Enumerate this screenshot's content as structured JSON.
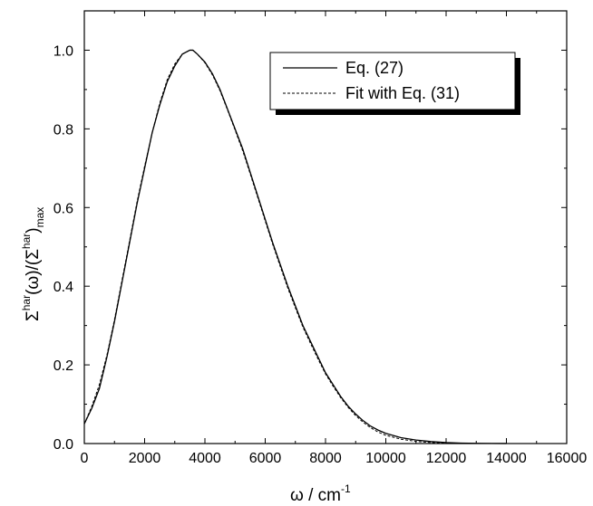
{
  "chart_data": {
    "type": "line",
    "title": "",
    "xlabel": {
      "base": "ω / cm",
      "sup": "-1"
    },
    "ylabel": {
      "p1": "Σ",
      "s1": "har",
      "p2": "(ω)/(Σ",
      "s2": "har",
      "p3": ")",
      "sub": "max"
    },
    "xlim": [
      0,
      16000
    ],
    "ylim": [
      0,
      1.1
    ],
    "x_ticks": [
      0,
      2000,
      4000,
      6000,
      8000,
      10000,
      12000,
      14000,
      16000
    ],
    "x_tick_labels": [
      "0",
      "2000",
      "4000",
      "6000",
      "8000",
      "10000",
      "12000",
      "14000",
      "16000"
    ],
    "y_ticks": [
      0,
      0.2,
      0.4,
      0.6,
      0.8,
      1.0
    ],
    "y_tick_labels": [
      "0.0",
      "0.2",
      "0.4",
      "0.6",
      "0.8",
      "1.0"
    ],
    "grid": false,
    "legend_position": "top-right",
    "series": [
      {
        "name": "Eq. (27)",
        "style": "solid",
        "color": "#000000",
        "x": [
          0,
          250,
          500,
          750,
          1000,
          1250,
          1500,
          1750,
          2000,
          2250,
          2500,
          2750,
          3000,
          3250,
          3500,
          3600,
          3750,
          4000,
          4250,
          4500,
          4750,
          5000,
          5250,
          5500,
          5750,
          6000,
          6250,
          6500,
          6750,
          7000,
          7250,
          7500,
          7750,
          8000,
          8250,
          8500,
          8750,
          9000,
          9250,
          9500,
          9750,
          10000,
          10500,
          11000,
          11500,
          12000,
          12500,
          13000,
          13500,
          14000
        ],
        "y": [
          0.05,
          0.09,
          0.14,
          0.22,
          0.31,
          0.41,
          0.51,
          0.61,
          0.7,
          0.79,
          0.86,
          0.92,
          0.96,
          0.99,
          1.0,
          1.0,
          0.99,
          0.97,
          0.94,
          0.9,
          0.85,
          0.8,
          0.75,
          0.69,
          0.63,
          0.57,
          0.51,
          0.455,
          0.4,
          0.35,
          0.3,
          0.26,
          0.22,
          0.18,
          0.15,
          0.12,
          0.095,
          0.075,
          0.058,
          0.044,
          0.034,
          0.026,
          0.015,
          0.009,
          0.005,
          0.0025,
          0.0012,
          0.0005,
          0.0002,
          0.0001
        ]
      },
      {
        "name": "Fit with Eq. (31)",
        "style": "dashed",
        "color": "#000000",
        "x": [
          0,
          250,
          500,
          750,
          1000,
          1250,
          1500,
          1750,
          2000,
          2250,
          2500,
          2750,
          3000,
          3250,
          3500,
          3600,
          3750,
          4000,
          4250,
          4500,
          4750,
          5000,
          5250,
          5500,
          5750,
          6000,
          6250,
          6500,
          6750,
          7000,
          7250,
          7500,
          7750,
          8000,
          8250,
          8500,
          8750,
          9000,
          9250,
          9500,
          9750,
          10000,
          10500,
          11000,
          11500,
          12000,
          12500,
          13000,
          13500,
          14000
        ],
        "y": [
          0.05,
          0.095,
          0.15,
          0.225,
          0.315,
          0.415,
          0.515,
          0.615,
          0.705,
          0.79,
          0.865,
          0.925,
          0.965,
          0.99,
          1.0,
          1.0,
          0.99,
          0.968,
          0.937,
          0.897,
          0.848,
          0.797,
          0.745,
          0.686,
          0.626,
          0.566,
          0.506,
          0.45,
          0.395,
          0.345,
          0.296,
          0.255,
          0.215,
          0.177,
          0.146,
          0.117,
          0.092,
          0.071,
          0.054,
          0.04,
          0.029,
          0.021,
          0.011,
          0.0055,
          0.0025,
          0.001,
          0.0004,
          0.0001,
          0.0,
          0.0
        ]
      }
    ]
  }
}
